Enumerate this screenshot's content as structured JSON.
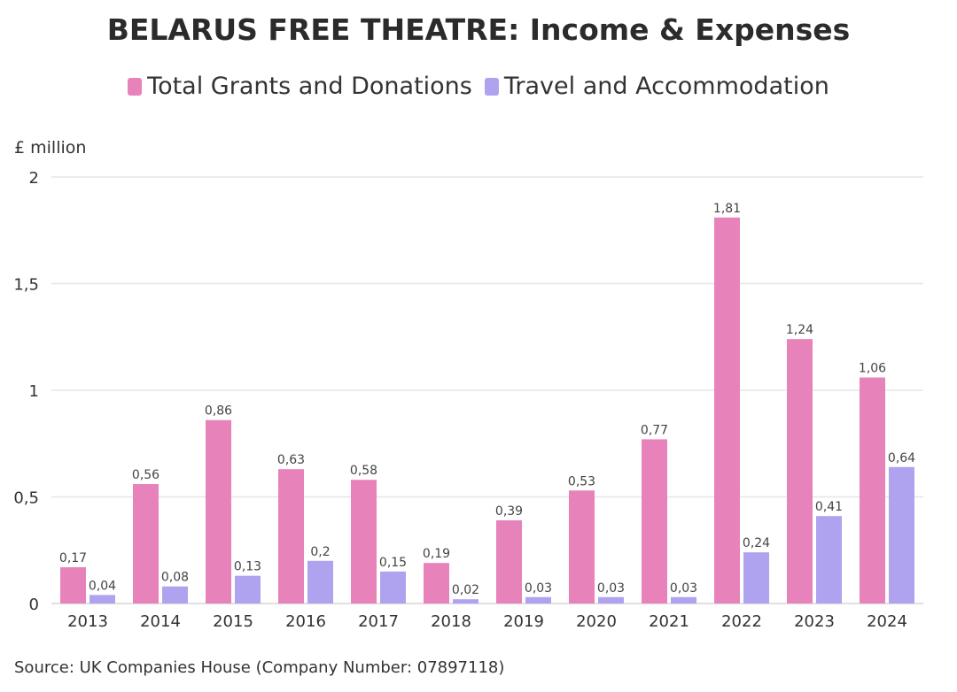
{
  "chart_data": {
    "type": "bar",
    "title": "BELARUS FREE THEATRE: Income & Expenses",
    "ylabel": "£ million",
    "xlabel": "",
    "ylim": [
      0,
      2
    ],
    "yticks": [
      "0",
      "0,5",
      "1",
      "1,5",
      "2"
    ],
    "ytick_values": [
      0,
      0.5,
      1,
      1.5,
      2
    ],
    "grid": true,
    "legend_position": "top-center",
    "categories": [
      "2013",
      "2014",
      "2015",
      "2016",
      "2017",
      "2018",
      "2019",
      "2020",
      "2021",
      "2022",
      "2023",
      "2024"
    ],
    "series": [
      {
        "name": "Total Grants and Donations",
        "color": "#e882bb",
        "values": [
          0.17,
          0.56,
          0.86,
          0.63,
          0.58,
          0.19,
          0.39,
          0.53,
          0.77,
          1.81,
          1.24,
          1.06
        ],
        "labels": [
          "0,17",
          "0,56",
          "0,86",
          "0,63",
          "0,58",
          "0,19",
          "0,39",
          "0,53",
          "0,77",
          "1,81",
          "1,24",
          "1,06"
        ]
      },
      {
        "name": "Travel and Accommodation",
        "color": "#afa3f0",
        "values": [
          0.04,
          0.08,
          0.13,
          0.2,
          0.15,
          0.02,
          0.03,
          0.03,
          0.03,
          0.24,
          0.41,
          0.64
        ],
        "labels": [
          "0,04",
          "0,08",
          "0,13",
          "0,2",
          "0,15",
          "0,02",
          "0,03",
          "0,03",
          "0,03",
          "0,24",
          "0,41",
          "0,64"
        ]
      }
    ]
  },
  "source": "Source: UK Companies House (Company Number: 07897118)"
}
